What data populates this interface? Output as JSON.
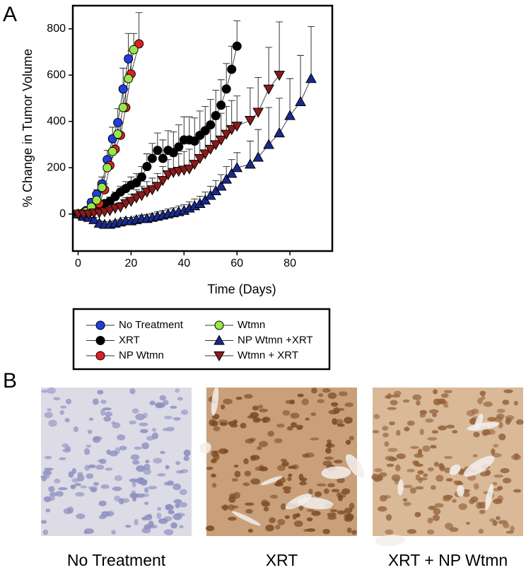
{
  "panel_a": {
    "label": "A"
  },
  "chart_data": {
    "type": "line",
    "xlabel": "Time (Days)",
    "ylabel": "% Change in Tumor Volume",
    "xlim": [
      -2,
      96
    ],
    "ylim": [
      -160,
      900
    ],
    "xticks": [
      0,
      20,
      40,
      60,
      80
    ],
    "yticks": [
      0,
      200,
      400,
      600,
      800
    ],
    "grid": false,
    "series": [
      {
        "name": "No Treatment",
        "color": "#1f3fe0",
        "marker": "circle",
        "x": [
          0,
          3,
          5,
          7,
          9,
          11,
          13,
          15,
          17,
          19
        ],
        "values": [
          0,
          15,
          50,
          85,
          130,
          235,
          325,
          395,
          540,
          670
        ],
        "errors": [
          5,
          10,
          15,
          20,
          30,
          40,
          50,
          60,
          90,
          110
        ]
      },
      {
        "name": "XRT",
        "color": "#000000",
        "marker": "circle",
        "x": [
          0,
          2,
          4,
          6,
          8,
          10,
          12,
          14,
          16,
          18,
          20,
          22,
          24,
          26,
          28,
          30,
          32,
          34,
          36,
          38,
          40,
          42,
          44,
          46,
          48,
          50,
          52,
          54,
          56,
          58,
          60
        ],
        "values": [
          0,
          5,
          10,
          20,
          30,
          45,
          55,
          75,
          95,
          110,
          125,
          135,
          160,
          205,
          240,
          275,
          240,
          275,
          265,
          290,
          320,
          320,
          315,
          340,
          360,
          385,
          425,
          470,
          540,
          625,
          725
        ],
        "errors": [
          5,
          5,
          8,
          10,
          12,
          15,
          18,
          20,
          25,
          30,
          35,
          40,
          45,
          55,
          65,
          75,
          80,
          85,
          90,
          95,
          100,
          100,
          100,
          105,
          105,
          110,
          110,
          110,
          110,
          100,
          110
        ]
      },
      {
        "name": "NP Wtmn",
        "color": "#e02020",
        "marker": "circle",
        "x": [
          2,
          4,
          6,
          8,
          10,
          12,
          14,
          16,
          18,
          20,
          23
        ],
        "values": [
          5,
          10,
          15,
          45,
          105,
          210,
          280,
          340,
          460,
          605,
          735
        ],
        "errors": [
          5,
          8,
          10,
          15,
          25,
          35,
          45,
          55,
          80,
          100,
          135
        ]
      },
      {
        "name": "Wtmn",
        "color": "#98e848",
        "marker": "circle",
        "x": [
          1,
          3,
          5,
          7,
          9,
          11,
          13,
          15,
          17,
          19,
          21
        ],
        "values": [
          0,
          10,
          30,
          60,
          115,
          200,
          270,
          345,
          460,
          585,
          710
        ],
        "errors": [
          5,
          8,
          12,
          20,
          30,
          40,
          50,
          60,
          80,
          100,
          70
        ]
      },
      {
        "name": "NP Wtmn +XRT",
        "color": "#1a2a8c",
        "marker": "triangle-up",
        "x": [
          0,
          2,
          4,
          6,
          8,
          10,
          12,
          14,
          16,
          18,
          20,
          22,
          24,
          26,
          28,
          30,
          32,
          34,
          36,
          38,
          40,
          42,
          44,
          46,
          48,
          50,
          52,
          54,
          56,
          58,
          60,
          65,
          68,
          72,
          76,
          80,
          84,
          88
        ],
        "values": [
          0,
          -10,
          -15,
          -25,
          -40,
          -45,
          -45,
          -40,
          -35,
          -30,
          -30,
          -25,
          -20,
          -20,
          -15,
          -10,
          -5,
          0,
          5,
          10,
          15,
          25,
          35,
          45,
          60,
          80,
          100,
          120,
          150,
          175,
          200,
          215,
          245,
          300,
          350,
          425,
          485,
          585
        ],
        "errors": [
          5,
          5,
          8,
          10,
          10,
          12,
          12,
          12,
          12,
          15,
          15,
          15,
          15,
          18,
          18,
          20,
          20,
          22,
          22,
          25,
          25,
          28,
          30,
          32,
          35,
          40,
          45,
          50,
          55,
          60,
          65,
          100,
          120,
          160,
          150,
          160,
          200,
          225
        ]
      },
      {
        "name": "Wtmn + XRT",
        "color": "#8b1a1a",
        "marker": "triangle-down",
        "x": [
          0,
          2,
          4,
          6,
          8,
          10,
          12,
          14,
          16,
          18,
          20,
          22,
          24,
          26,
          28,
          30,
          32,
          34,
          36,
          38,
          40,
          42,
          44,
          46,
          48,
          50,
          52,
          54,
          56,
          58,
          60,
          65,
          68,
          72,
          76
        ],
        "values": [
          0,
          0,
          0,
          5,
          5,
          10,
          15,
          25,
          30,
          45,
          55,
          70,
          80,
          95,
          105,
          120,
          145,
          170,
          180,
          185,
          190,
          195,
          215,
          240,
          260,
          280,
          300,
          320,
          345,
          365,
          380,
          405,
          440,
          540,
          600
        ],
        "errors": [
          5,
          5,
          5,
          8,
          10,
          12,
          15,
          18,
          20,
          25,
          30,
          35,
          40,
          45,
          50,
          55,
          60,
          65,
          70,
          75,
          80,
          85,
          90,
          95,
          100,
          105,
          110,
          115,
          120,
          125,
          130,
          140,
          150,
          180,
          230
        ]
      }
    ]
  },
  "panel_b": {
    "label": "B",
    "images": [
      {
        "caption": "No Treatment"
      },
      {
        "caption": "XRT"
      },
      {
        "caption": "XRT + NP Wtmn"
      }
    ]
  }
}
